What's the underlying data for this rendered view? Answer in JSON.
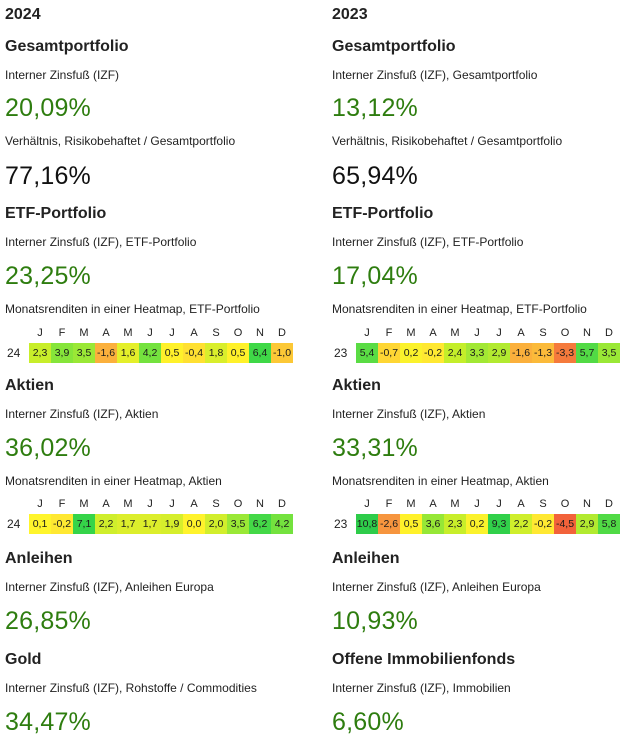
{
  "months": [
    "J",
    "F",
    "M",
    "A",
    "M",
    "J",
    "J",
    "A",
    "S",
    "O",
    "N",
    "D"
  ],
  "left": {
    "year": "2024",
    "gp_title": "Gesamtportfolio",
    "gp_irr_label": "Interner Zinsfuß (IZF)",
    "gp_irr_value": "20,09%",
    "gp_ratio_label": "Verhältnis, Risikobehaftet / Gesamtportfolio",
    "gp_ratio_value": "77,16%",
    "etf_title": "ETF-Portfolio",
    "etf_irr_label": "Interner Zinsfuß (IZF), ETF-Portfolio",
    "etf_irr_value": "23,25%",
    "etf_hm_label": "Monatsrenditen in einer Heatmap, ETF-Portfolio",
    "etf_hm_year": "24",
    "etf_hm": [
      {
        "t": "2,3",
        "c": "#c8ee2a"
      },
      {
        "t": "3,9",
        "c": "#86e53a"
      },
      {
        "t": "3,5",
        "c": "#9ae836"
      },
      {
        "t": "-1,6",
        "c": "#fbb03c"
      },
      {
        "t": "1,6",
        "c": "#e4ef2a"
      },
      {
        "t": "4,2",
        "c": "#74e23e"
      },
      {
        "t": "0,5",
        "c": "#fff12a"
      },
      {
        "t": "-0,4",
        "c": "#ffe032"
      },
      {
        "t": "1,8",
        "c": "#d9ee2c"
      },
      {
        "t": "0,5",
        "c": "#fff12a"
      },
      {
        "t": "6,4",
        "c": "#3fd847"
      },
      {
        "t": "-1,0",
        "c": "#fcc836"
      }
    ],
    "akt_title": "Aktien",
    "akt_irr_label": "Interner Zinsfuß (IZF), Aktien",
    "akt_irr_value": "36,02%",
    "akt_hm_label": "Monatsrenditen in einer Heatmap, Aktien",
    "akt_hm_year": "24",
    "akt_hm": [
      {
        "t": "0,1",
        "c": "#fff52c"
      },
      {
        "t": "-0,2",
        "c": "#ffe832"
      },
      {
        "t": "7,1",
        "c": "#35d449"
      },
      {
        "t": "2,2",
        "c": "#cfee2c"
      },
      {
        "t": "1,7",
        "c": "#dcee2c"
      },
      {
        "t": "1,7",
        "c": "#dcee2c"
      },
      {
        "t": "1,9",
        "c": "#d6ee2c"
      },
      {
        "t": "0,0",
        "c": "#fff32c"
      },
      {
        "t": "2,0",
        "c": "#d2ee2c"
      },
      {
        "t": "3,5",
        "c": "#9ae836"
      },
      {
        "t": "6,2",
        "c": "#44d847"
      },
      {
        "t": "4,2",
        "c": "#74e23e"
      }
    ],
    "anl_title": "Anleihen",
    "anl_irr_label": "Interner Zinsfuß (IZF), Anleihen Europa",
    "anl_irr_value": "26,85%",
    "last_title": "Gold",
    "last_irr_label": "Interner Zinsfuß (IZF), Rohstoffe / Commodities",
    "last_irr_value": "34,47%"
  },
  "right": {
    "year": "2023",
    "gp_title": "Gesamtportfolio",
    "gp_irr_label": "Interner Zinsfuß (IZF), Gesamtportfolio",
    "gp_irr_value": "13,12%",
    "gp_ratio_label": "Verhältnis, Risikobehaftet / Gesamtportfolio",
    "gp_ratio_value": "65,94%",
    "etf_title": "ETF-Portfolio",
    "etf_irr_label": "Interner Zinsfuß (IZF), ETF-Portfolio",
    "etf_irr_value": "17,04%",
    "etf_hm_label": "Monatsrenditen in einer Heatmap, ETF-Portfolio",
    "etf_hm_year": "23",
    "etf_hm": [
      {
        "t": "5,4",
        "c": "#5adc44"
      },
      {
        "t": "-0,7",
        "c": "#fed634"
      },
      {
        "t": "0,2",
        "c": "#fbf22c"
      },
      {
        "t": "-0,2",
        "c": "#ffe832"
      },
      {
        "t": "2,4",
        "c": "#c4ee2a"
      },
      {
        "t": "3,3",
        "c": "#a2e834"
      },
      {
        "t": "2,9",
        "c": "#b2ea30"
      },
      {
        "t": "-1,6",
        "c": "#fbb03c"
      },
      {
        "t": "-1,3",
        "c": "#fbba3a"
      },
      {
        "t": "-3,3",
        "c": "#f57a3c"
      },
      {
        "t": "5,7",
        "c": "#52da45"
      },
      {
        "t": "3,5",
        "c": "#9ae836"
      }
    ],
    "akt_title": "Aktien",
    "akt_irr_label": "Interner Zinsfuß (IZF), Aktien",
    "akt_irr_value": "33,31%",
    "akt_hm_label": "Monatsrenditen in einer Heatmap, Aktien",
    "akt_hm_year": "23",
    "akt_hm": [
      {
        "t": "10,8",
        "c": "#2ecc4a"
      },
      {
        "t": "-2,6",
        "c": "#f6953e"
      },
      {
        "t": "0,5",
        "c": "#fff12a"
      },
      {
        "t": "3,6",
        "c": "#96e736"
      },
      {
        "t": "2,3",
        "c": "#c8ee2a"
      },
      {
        "t": "0,2",
        "c": "#fbf22c"
      },
      {
        "t": "9,3",
        "c": "#31d04a"
      },
      {
        "t": "2,2",
        "c": "#cfee2c"
      },
      {
        "t": "-0,2",
        "c": "#ffe832"
      },
      {
        "t": "-4,5",
        "c": "#f2623a"
      },
      {
        "t": "2,9",
        "c": "#b2ea30"
      },
      {
        "t": "5,8",
        "c": "#50da45"
      }
    ],
    "anl_title": "Anleihen",
    "anl_irr_label": "Interner Zinsfuß (IZF), Anleihen Europa",
    "anl_irr_value": "10,93%",
    "last_title": "Offene Immobilienfonds",
    "last_irr_label": "Interner Zinsfuß (IZF), Immobilien",
    "last_irr_value": "6,60%"
  }
}
